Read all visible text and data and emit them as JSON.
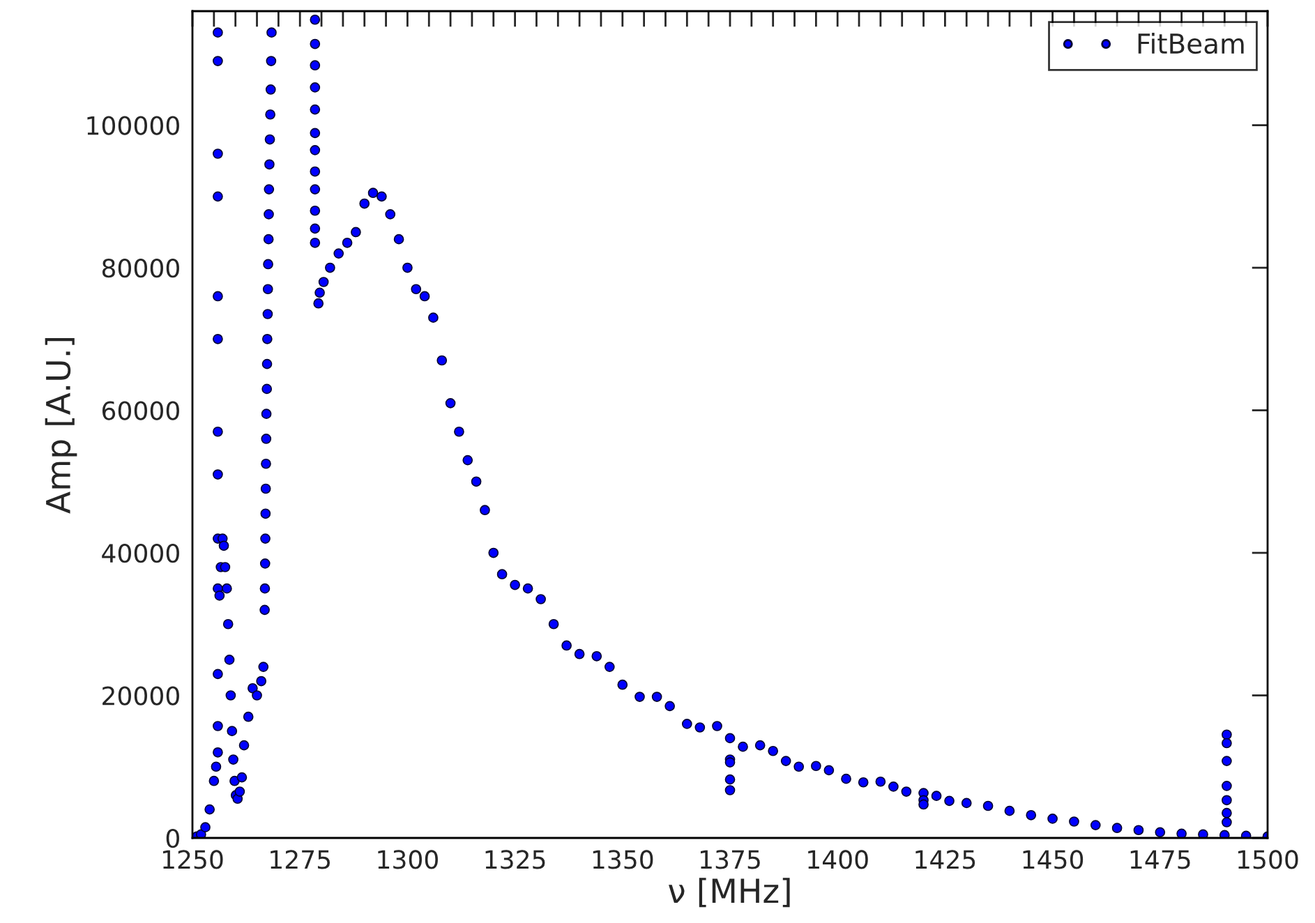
{
  "chart_data": {
    "type": "scatter",
    "xlabel": "ν [MHz]",
    "ylabel": "Amp [A.U.]",
    "xlim": [
      1250,
      1500
    ],
    "ylim": [
      0,
      116000
    ],
    "xticks": [
      1250,
      {
        "value": 1255,
        "label": null
      },
      {
        "value": 1260,
        "label": null
      },
      {
        "value": 1265,
        "label": null
      },
      {
        "value": 1270,
        "label": null
      },
      1275,
      {
        "value": 1280,
        "label": null
      },
      {
        "value": 1285,
        "label": null
      },
      {
        "value": 1290,
        "label": null
      },
      {
        "value": 1295,
        "label": null
      },
      1300,
      {
        "value": 1305,
        "label": null
      },
      {
        "value": 1310,
        "label": null
      },
      {
        "value": 1315,
        "label": null
      },
      {
        "value": 1320,
        "label": null
      },
      1325,
      {
        "value": 1330,
        "label": null
      },
      {
        "value": 1335,
        "label": null
      },
      {
        "value": 1340,
        "label": null
      },
      {
        "value": 1345,
        "label": null
      },
      1350,
      {
        "value": 1355,
        "label": null
      },
      {
        "value": 1360,
        "label": null
      },
      {
        "value": 1365,
        "label": null
      },
      {
        "value": 1370,
        "label": null
      },
      1375,
      {
        "value": 1380,
        "label": null
      },
      {
        "value": 1385,
        "label": null
      },
      {
        "value": 1390,
        "label": null
      },
      {
        "value": 1395,
        "label": null
      },
      1400,
      {
        "value": 1405,
        "label": null
      },
      {
        "value": 1410,
        "label": null
      },
      {
        "value": 1415,
        "label": null
      },
      {
        "value": 1420,
        "label": null
      },
      1425,
      {
        "value": 1430,
        "label": null
      },
      {
        "value": 1435,
        "label": null
      },
      {
        "value": 1440,
        "label": null
      },
      {
        "value": 1445,
        "label": null
      },
      1450,
      {
        "value": 1455,
        "label": null
      },
      {
        "value": 1460,
        "label": null
      },
      {
        "value": 1465,
        "label": null
      },
      {
        "value": 1470,
        "label": null
      },
      1475,
      {
        "value": 1480,
        "label": null
      },
      {
        "value": 1485,
        "label": null
      },
      {
        "value": 1490,
        "label": null
      },
      {
        "value": 1495,
        "label": null
      },
      1500
    ],
    "yticks": [
      0,
      20000,
      40000,
      60000,
      80000,
      100000
    ],
    "grid": false,
    "legend": "top right",
    "marker": "circle",
    "series": [
      {
        "name": "FitBeam",
        "color": "#0000ff",
        "x": [
          1251,
          1252,
          1253,
          1254,
          1255,
          1255.5,
          1255.9,
          1255.9,
          1255.9,
          1255.9,
          1255.9,
          1255.9,
          1255.9,
          1255.9,
          1255.9,
          1255.9,
          1255.9,
          1255.9,
          1255.9,
          1256.3,
          1256.6,
          1257,
          1257.3,
          1257.6,
          1258,
          1258.3,
          1258.6,
          1258.9,
          1259.2,
          1259.5,
          1259.8,
          1260.1,
          1260.5,
          1261,
          1261.5,
          1262,
          1263,
          1264,
          1265,
          1266,
          1266.5,
          1266.8,
          1266.85,
          1266.9,
          1266.95,
          1267.0,
          1267.05,
          1267.1,
          1267.15,
          1267.2,
          1267.3,
          1267.35,
          1267.4,
          1267.5,
          1267.55,
          1267.6,
          1267.7,
          1267.75,
          1267.8,
          1267.9,
          1268.0,
          1268.1,
          1268.2,
          1268.3,
          1268.4,
          1278.5,
          1278.5,
          1278.5,
          1278.5,
          1278.5,
          1278.5,
          1278.5,
          1278.5,
          1278.5,
          1278.5,
          1278.5,
          1278.5,
          1279.3,
          1279.6,
          1280.5,
          1282,
          1284,
          1286,
          1288,
          1290,
          1292,
          1294,
          1296,
          1298,
          1300,
          1302,
          1304,
          1306,
          1308,
          1310,
          1312,
          1314,
          1316,
          1318,
          1320,
          1322,
          1325,
          1328,
          1331,
          1334,
          1337,
          1340,
          1344,
          1347,
          1350,
          1354,
          1358,
          1361,
          1365,
          1368,
          1372,
          1375,
          1378,
          1382,
          1385,
          1388,
          1391,
          1395,
          1398,
          1402,
          1406,
          1410,
          1413,
          1416,
          1420,
          1423,
          1426,
          1430,
          1435,
          1440,
          1445,
          1450,
          1455,
          1460,
          1465,
          1470,
          1475,
          1480,
          1485,
          1490,
          1495,
          1500,
          1375,
          1375,
          1375,
          1375,
          1420,
          1420,
          1490.5,
          1490.5,
          1490.5,
          1490.5,
          1490.5,
          1490.5,
          1490.5
        ],
        "values": [
          200,
          500,
          1500,
          4000,
          8000,
          10000,
          113000,
          109000,
          96000,
          90000,
          76000,
          70000,
          57000,
          51000,
          42000,
          35000,
          23000,
          15700,
          12000,
          34000,
          38000,
          42000,
          41000,
          38000,
          35000,
          30000,
          25000,
          20000,
          15000,
          11000,
          8000,
          6000,
          5500,
          6500,
          8500,
          13000,
          17000,
          21000,
          20000,
          22000,
          24000,
          32000,
          35000,
          38500,
          42000,
          45500,
          49000,
          52500,
          56000,
          59500,
          63000,
          66500,
          70000,
          73500,
          77000,
          80500,
          84000,
          87500,
          91000,
          94500,
          98000,
          101500,
          105000,
          109000,
          113000,
          114800,
          111400,
          108400,
          105300,
          102200,
          98900,
          96500,
          93500,
          91000,
          88000,
          85500,
          83500,
          75000,
          76500,
          78000,
          80000,
          82000,
          83500,
          85000,
          89000,
          90500,
          90000,
          87500,
          84000,
          80000,
          77000,
          76000,
          73000,
          67000,
          61000,
          57000,
          53000,
          50000,
          46000,
          40000,
          37000,
          35500,
          35000,
          33500,
          30000,
          27000,
          25800,
          25500,
          24000,
          21500,
          19800,
          19800,
          18500,
          16000,
          15500,
          15700,
          14000,
          12800,
          13000,
          12200,
          10800,
          10000,
          10100,
          9500,
          8300,
          7800,
          7900,
          7200,
          6500,
          6300,
          5900,
          5200,
          4900,
          4500,
          3800,
          3200,
          2700,
          2300,
          1800,
          1400,
          1100,
          800,
          600,
          500,
          400,
          300,
          200,
          11000,
          10600,
          8200,
          6700,
          5300,
          4700,
          14500,
          13300,
          10800,
          7300,
          5300,
          3500,
          2200
        ]
      }
    ]
  }
}
